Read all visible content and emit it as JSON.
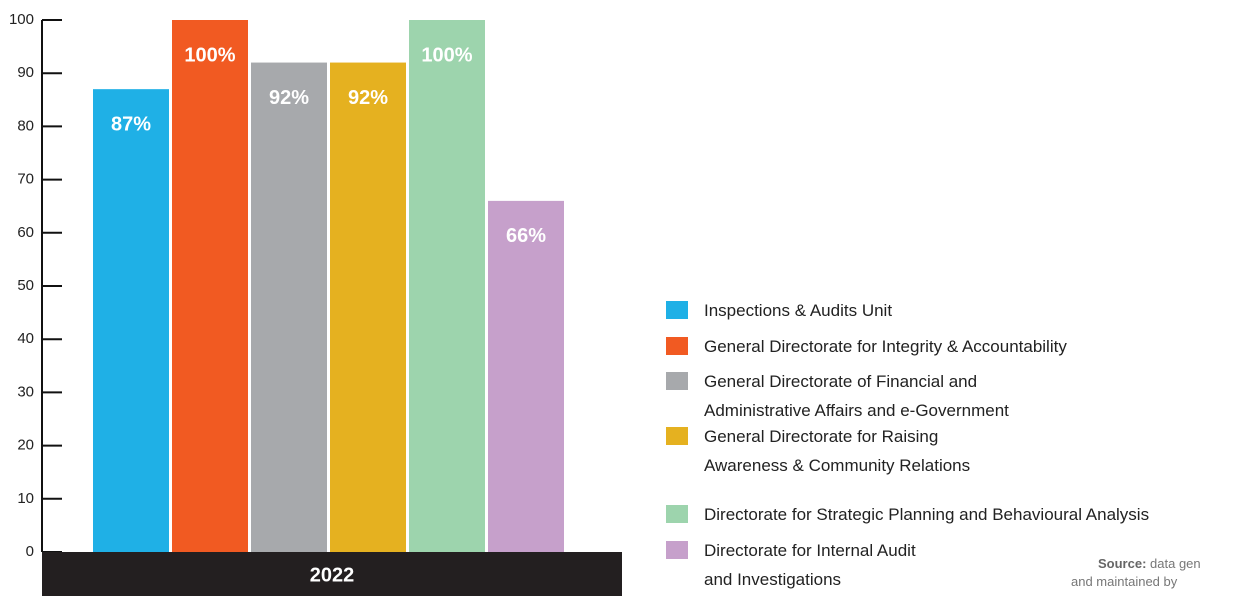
{
  "chart_data": {
    "type": "bar",
    "categories": [
      "2022"
    ],
    "series": [
      {
        "name": "Inspections & Audits Unit",
        "color": "#1fb0e6",
        "values": [
          87
        ],
        "value_labels": [
          "87%"
        ]
      },
      {
        "name": "General Directorate for Integrity & Accountability",
        "color": "#f15a22",
        "values": [
          100
        ],
        "value_labels": [
          "100%"
        ]
      },
      {
        "name": "General Directorate of Financial and\nAdministrative Affairs and e-Government",
        "color": "#a7a9ac",
        "values": [
          92
        ],
        "value_labels": [
          "92%"
        ]
      },
      {
        "name": "General Directorate for Raising\nAwareness & Community Relations",
        "color": "#e5b120",
        "values": [
          92
        ],
        "value_labels": [
          "92%"
        ]
      },
      {
        "name": "Directorate for Strategic Planning and Behavioural Analysis",
        "color": "#9dd4ad",
        "values": [
          100
        ],
        "value_labels": [
          "100%"
        ]
      },
      {
        "name": "Directorate for Internal Audit\nand Investigations",
        "color": "#c6a0cb",
        "values": [
          66
        ],
        "value_labels": [
          "66%"
        ]
      }
    ],
    "ylim": [
      0,
      100
    ],
    "yticks": [
      0,
      10,
      20,
      30,
      40,
      50,
      60,
      70,
      80,
      90,
      100
    ],
    "source": {
      "label": "Source:",
      "line1": "data gen",
      "line2": "and maintained by"
    }
  }
}
